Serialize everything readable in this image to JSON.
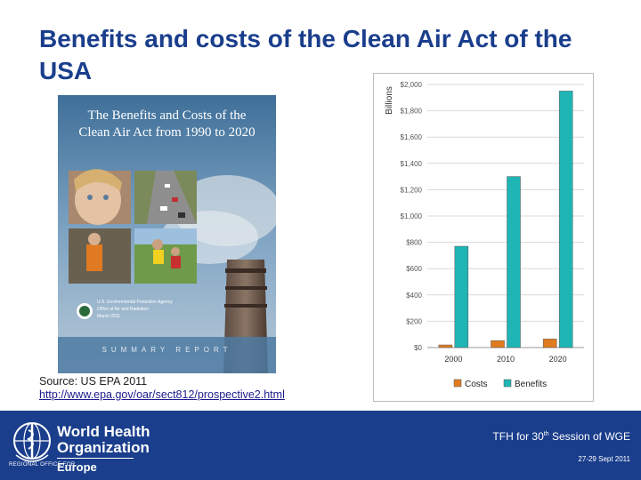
{
  "slide": {
    "title": "Benefits and costs of the Clean Air Act of the USA"
  },
  "cover": {
    "title_line1": "The Benefits and Costs of the",
    "title_line2": "Clean Air Act from 1990 to 2020",
    "agency_line1": "U.S. Environmental Protection Agency",
    "agency_line2": "Office of Air and Radiation",
    "date": "March 2011",
    "report_label": "SUMMARY REPORT"
  },
  "source": {
    "line1": "Source: US EPA 2011",
    "url": "http://www.epa.gov/oar/sect812/prospective2.html"
  },
  "footer": {
    "org_line1": "World Health",
    "org_line2": "Organization",
    "regional_prefix": "REGIONAL OFFICE FOR",
    "region": "Europe",
    "event_prefix": "TFH for 30",
    "event_sup": "th",
    "event_suffix": " Session of WGE",
    "date": "27-29 Sept 2011"
  },
  "colors": {
    "title": "#1a3e8c",
    "footer_bg": "#1a3e8c",
    "costs": "#e07b20",
    "benefits": "#1fb5b5"
  },
  "chart_data": {
    "type": "bar",
    "ylabel": "Billions",
    "categories": [
      "2000",
      "2010",
      "2020"
    ],
    "series": [
      {
        "name": "Costs",
        "values": [
          20,
          53,
          65
        ],
        "color": "#e07b20"
      },
      {
        "name": "Benefits",
        "values": [
          770,
          1300,
          1950
        ],
        "color": "#1fb5b5"
      }
    ],
    "ylim": [
      0,
      2000
    ],
    "yticks": [
      0,
      200,
      400,
      600,
      800,
      1000,
      1200,
      1400,
      1600,
      1800,
      2000
    ],
    "ytick_labels": [
      "$0",
      "$200",
      "$400",
      "$600",
      "$800",
      "$1,000",
      "$1,200",
      "$1,400",
      "$1,600",
      "$1,800",
      "$2,000"
    ],
    "grid": true,
    "legend": "bottom"
  }
}
